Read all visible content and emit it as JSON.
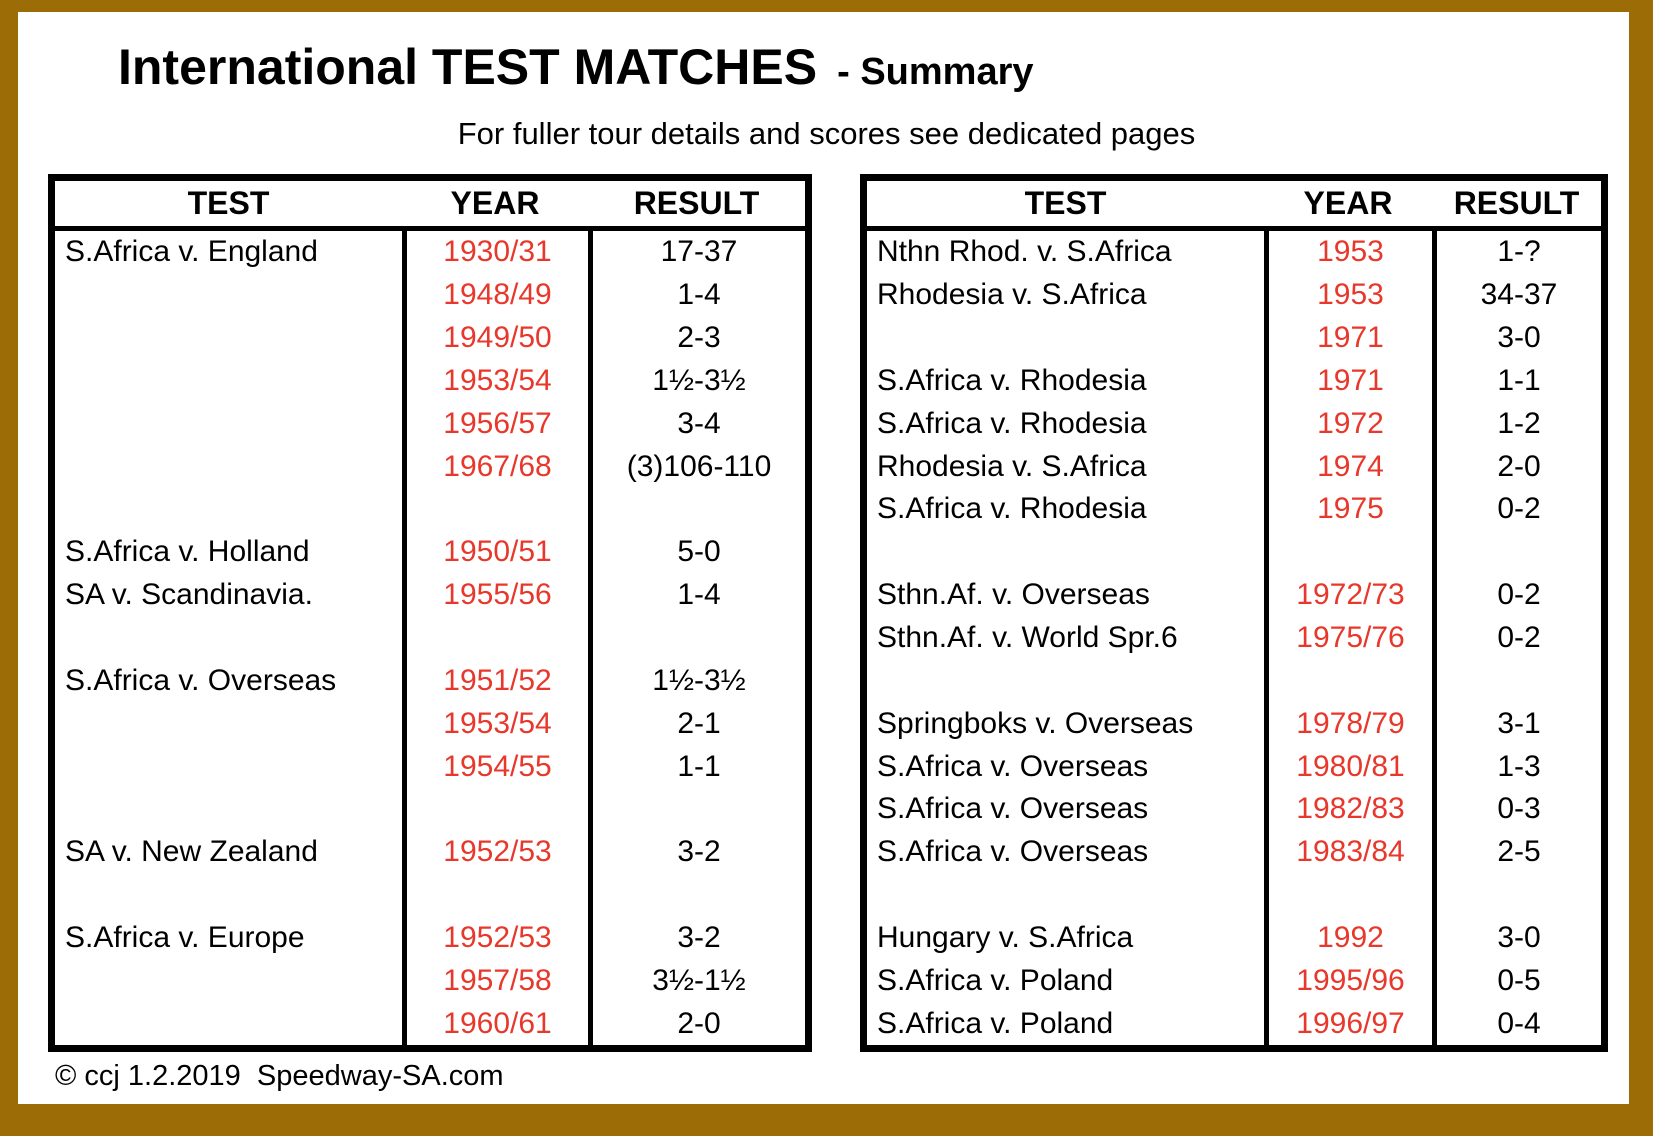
{
  "header": {
    "title": "International TEST MATCHES",
    "title_suffix": "- Summary",
    "subtitle": "For fuller tour details and scores see dedicated pages"
  },
  "footer": "© ccj 1.2.2019  Speedway-SA.com",
  "colors": {
    "frame": "#9C6D06",
    "year_text": "#E8372B",
    "table_border": "#000000",
    "background": "#FFFFFF"
  },
  "tables": [
    {
      "id": "left",
      "headers": [
        "TEST",
        "YEAR",
        "RESULT"
      ],
      "rows": [
        [
          "S.Africa v. England",
          "1930/31",
          "17-37"
        ],
        [
          "",
          "1948/49",
          "1-4"
        ],
        [
          "",
          "1949/50",
          "2-3"
        ],
        [
          "",
          "1953/54",
          "1½-3½"
        ],
        [
          "",
          "1956/57",
          "3-4"
        ],
        [
          "",
          "1967/68",
          "(3)106-110"
        ],
        [
          "",
          "",
          ""
        ],
        [
          "S.Africa v. Holland",
          "1950/51",
          "5-0"
        ],
        [
          "SA v. Scandinavia.",
          "1955/56",
          "1-4"
        ],
        [
          "",
          "",
          ""
        ],
        [
          "S.Africa v. Overseas",
          "1951/52",
          "1½-3½"
        ],
        [
          "",
          "1953/54",
          "2-1"
        ],
        [
          "",
          "1954/55",
          "1-1"
        ],
        [
          "",
          "",
          ""
        ],
        [
          "SA v. New Zealand",
          "1952/53",
          "3-2"
        ],
        [
          "",
          "",
          ""
        ],
        [
          "S.Africa v. Europe",
          "1952/53",
          "3-2"
        ],
        [
          "",
          "1957/58",
          "3½-1½"
        ],
        [
          "",
          "1960/61",
          "2-0"
        ]
      ]
    },
    {
      "id": "right",
      "headers": [
        "TEST",
        "YEAR",
        "RESULT"
      ],
      "rows": [
        [
          "Nthn Rhod. v. S.Africa",
          "1953",
          "1-?"
        ],
        [
          "Rhodesia v. S.Africa",
          "1953",
          "34-37"
        ],
        [
          "",
          "1971",
          "3-0"
        ],
        [
          "S.Africa v. Rhodesia",
          "1971",
          "1-1"
        ],
        [
          "S.Africa v. Rhodesia",
          "1972",
          "1-2"
        ],
        [
          "Rhodesia v. S.Africa",
          "1974",
          "2-0"
        ],
        [
          "S.Africa v. Rhodesia",
          "1975",
          "0-2"
        ],
        [
          "",
          "",
          ""
        ],
        [
          "Sthn.Af. v. Overseas",
          "1972/73",
          "0-2"
        ],
        [
          "Sthn.Af. v. World Spr.6",
          "1975/76",
          "0-2"
        ],
        [
          "",
          "",
          ""
        ],
        [
          "Springboks v. Overseas",
          "1978/79",
          "3-1"
        ],
        [
          "S.Africa v. Overseas",
          "1980/81",
          "1-3"
        ],
        [
          "S.Africa v. Overseas",
          "1982/83",
          "0-3"
        ],
        [
          "S.Africa v. Overseas",
          "1983/84",
          "2-5"
        ],
        [
          "",
          "",
          ""
        ],
        [
          "Hungary v. S.Africa",
          "1992",
          "3-0"
        ],
        [
          "S.Africa v. Poland",
          "1995/96",
          "0-5"
        ],
        [
          "S.Africa v. Poland",
          "1996/97",
          "0-4"
        ]
      ]
    }
  ]
}
